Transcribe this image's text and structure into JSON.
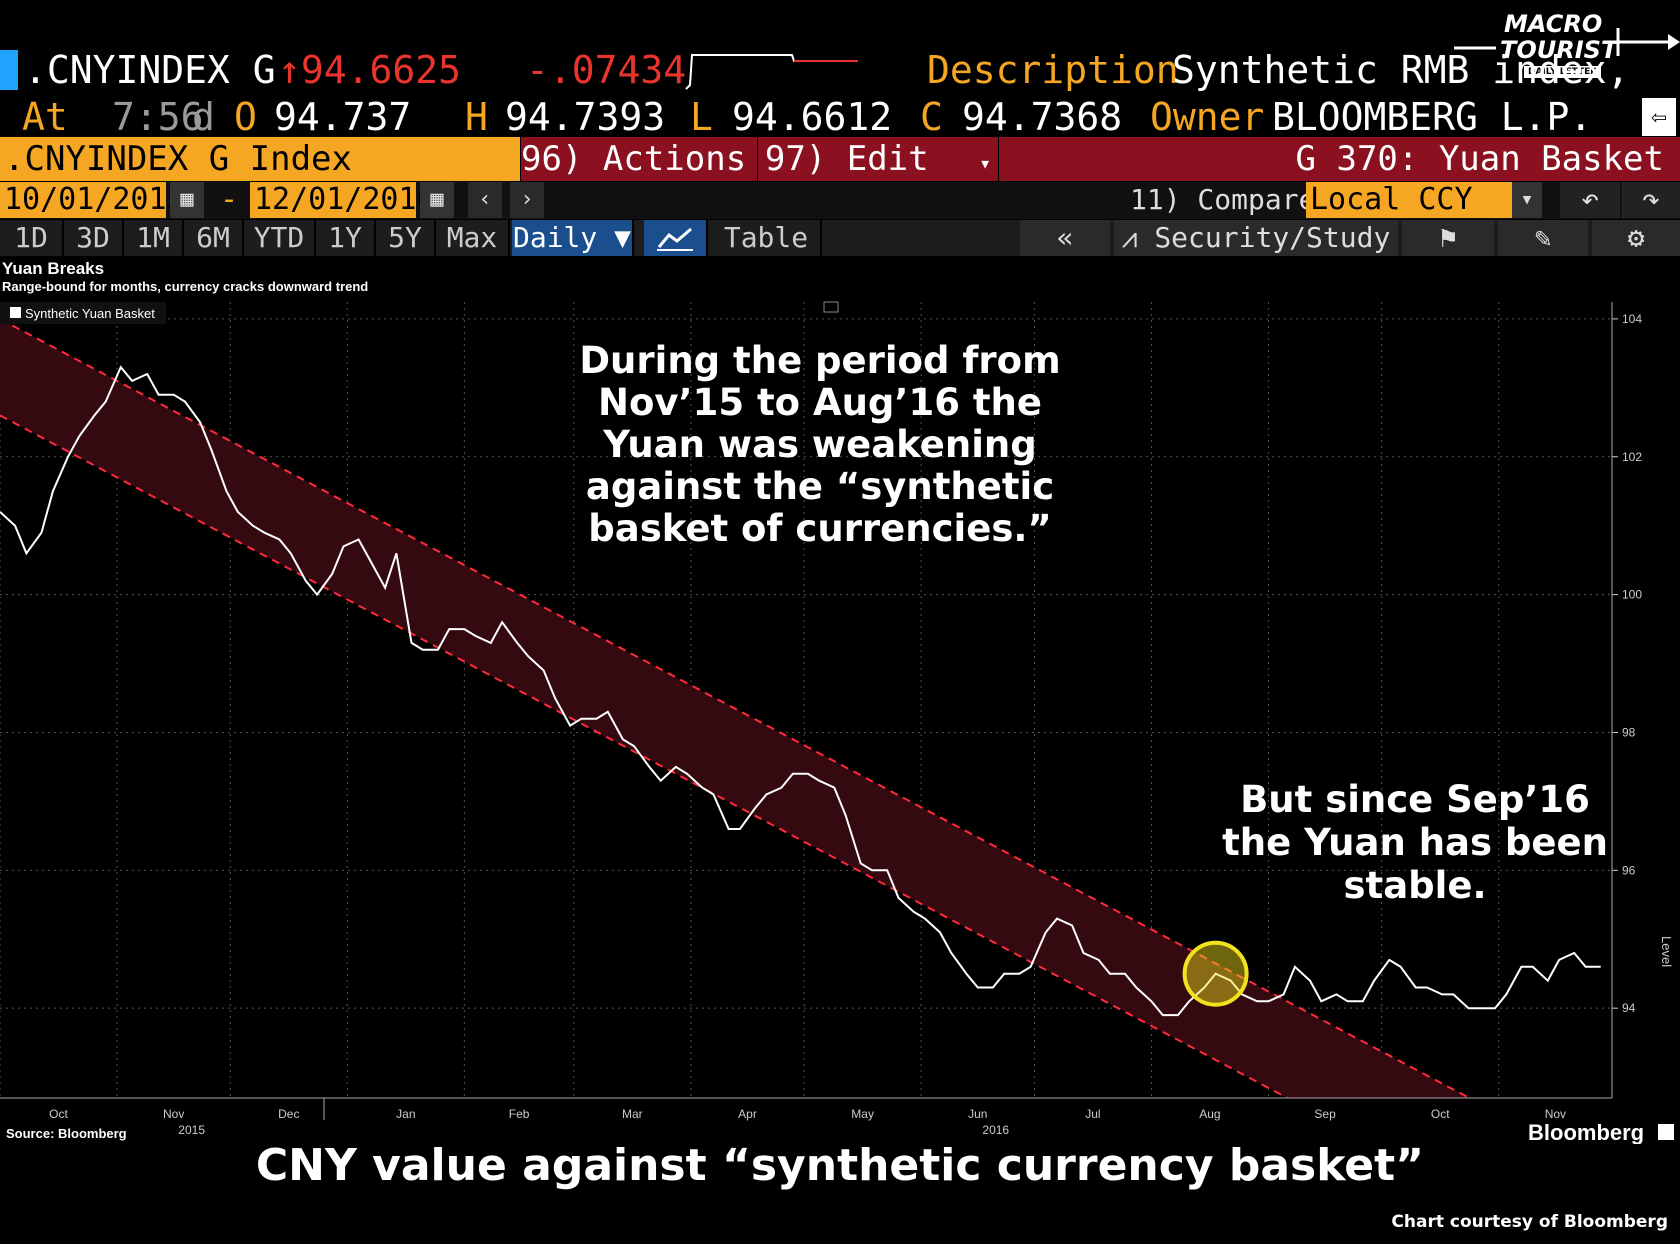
{
  "header": {
    "ticker": ".CNYINDEX G",
    "last_price": "↑94.6625",
    "net_change": "-.07434",
    "description_label": "Description",
    "description_value": "Synthetic RMB index, ge",
    "at_label": "At",
    "time": "7:56",
    "d_label": "d",
    "open_label": "O",
    "open_value": "94.737",
    "high_label": "H",
    "high_value": "94.7393",
    "low_label": "L",
    "low_value": "94.6612",
    "close_label": "C",
    "close_value": "94.7368",
    "owner_label": "Owner",
    "owner_value": "BLOOMBERG L.P."
  },
  "logo": {
    "line1": "MACRO",
    "line2": "TOURIST",
    "line3": "DAILY LETTER"
  },
  "toolbar": {
    "security": ".CNYINDEX G Index",
    "actions": "96) Actions",
    "edit": "97) Edit",
    "chart_code": "G 370: Yuan Basket",
    "start_date": "10/01/2015",
    "date_sep": "-",
    "end_date": "12/01/2016",
    "compare": "11) Compare",
    "currency": "Local CCY",
    "periods": [
      "1D",
      "3D",
      "1M",
      "6M",
      "YTD",
      "1Y",
      "5Y",
      "Max"
    ],
    "frequency": "Daily ▼",
    "table": "Table",
    "security_study": "Security/Study"
  },
  "chart_data": {
    "type": "line",
    "title": "Yuan Breaks",
    "subtitle": "Range-bound for months, currency cracks downward trend",
    "legend": "Synthetic Yuan Basket",
    "legend_position": "top-left",
    "ylabel": "Level",
    "ylim": [
      92.9,
      104.1
    ],
    "y_ticks": [
      "104",
      "102",
      "100",
      "98",
      "96",
      "94"
    ],
    "x_ticks": [
      {
        "label": "Oct",
        "year": ""
      },
      {
        "label": "Nov",
        "year": "2015"
      },
      {
        "label": "Dec",
        "year": ""
      },
      {
        "label": "Jan",
        "year": ""
      },
      {
        "label": "Feb",
        "year": ""
      },
      {
        "label": "Mar",
        "year": ""
      },
      {
        "label": "Apr",
        "year": ""
      },
      {
        "label": "May",
        "year": ""
      },
      {
        "label": "Jun",
        "year": "2016"
      },
      {
        "label": "Jul",
        "year": ""
      },
      {
        "label": "Aug",
        "year": ""
      },
      {
        "label": "Sep",
        "year": ""
      },
      {
        "label": "Oct",
        "year": ""
      },
      {
        "label": "Nov",
        "year": ""
      }
    ],
    "grid": true,
    "series": [
      {
        "name": "Synthetic Yuan Basket",
        "color": "#ffffff",
        "x": [
          "2015-10-01",
          "2015-10-05",
          "2015-10-08",
          "2015-10-12",
          "2015-10-15",
          "2015-10-19",
          "2015-10-22",
          "2015-10-26",
          "2015-10-29",
          "2015-11-02",
          "2015-11-05",
          "2015-11-09",
          "2015-11-12",
          "2015-11-16",
          "2015-11-19",
          "2015-11-23",
          "2015-11-26",
          "2015-11-30",
          "2015-12-03",
          "2015-12-07",
          "2015-12-10",
          "2015-12-14",
          "2015-12-17",
          "2015-12-21",
          "2015-12-24",
          "2015-12-28",
          "2015-12-31",
          "2016-01-04",
          "2016-01-07",
          "2016-01-11",
          "2016-01-14",
          "2016-01-18",
          "2016-01-21",
          "2016-01-25",
          "2016-01-28",
          "2016-02-01",
          "2016-02-04",
          "2016-02-08",
          "2016-02-11",
          "2016-02-15",
          "2016-02-18",
          "2016-02-22",
          "2016-02-25",
          "2016-02-29",
          "2016-03-03",
          "2016-03-07",
          "2016-03-10",
          "2016-03-14",
          "2016-03-17",
          "2016-03-21",
          "2016-03-24",
          "2016-03-28",
          "2016-03-31",
          "2016-04-04",
          "2016-04-07",
          "2016-04-11",
          "2016-04-14",
          "2016-04-18",
          "2016-04-21",
          "2016-04-25",
          "2016-04-28",
          "2016-05-02",
          "2016-05-05",
          "2016-05-09",
          "2016-05-12",
          "2016-05-16",
          "2016-05-19",
          "2016-05-23",
          "2016-05-26",
          "2016-05-30",
          "2016-06-02",
          "2016-06-06",
          "2016-06-09",
          "2016-06-13",
          "2016-06-16",
          "2016-06-20",
          "2016-06-23",
          "2016-06-27",
          "2016-06-30",
          "2016-07-04",
          "2016-07-07",
          "2016-07-11",
          "2016-07-14",
          "2016-07-18",
          "2016-07-21",
          "2016-07-25",
          "2016-07-28",
          "2016-08-01",
          "2016-08-04",
          "2016-08-08",
          "2016-08-11",
          "2016-08-15",
          "2016-08-18",
          "2016-08-22",
          "2016-08-25",
          "2016-08-29",
          "2016-09-01",
          "2016-09-05",
          "2016-09-08",
          "2016-09-12",
          "2016-09-15",
          "2016-09-19",
          "2016-09-22",
          "2016-09-26",
          "2016-09-29",
          "2016-10-03",
          "2016-10-06",
          "2016-10-10",
          "2016-10-13",
          "2016-10-17",
          "2016-10-20",
          "2016-10-24",
          "2016-10-27",
          "2016-10-31",
          "2016-11-03",
          "2016-11-07",
          "2016-11-10",
          "2016-11-14",
          "2016-11-17",
          "2016-11-21",
          "2016-11-24",
          "2016-11-28"
        ],
        "values": [
          101.2,
          101.0,
          100.6,
          100.9,
          101.5,
          102.0,
          102.3,
          102.6,
          102.8,
          103.3,
          103.1,
          103.2,
          102.9,
          102.9,
          102.8,
          102.5,
          102.1,
          101.5,
          101.2,
          101.0,
          100.9,
          100.8,
          100.6,
          100.2,
          100.0,
          100.3,
          100.7,
          100.8,
          100.5,
          100.1,
          100.6,
          99.3,
          99.2,
          99.2,
          99.5,
          99.5,
          99.4,
          99.3,
          99.6,
          99.3,
          99.1,
          98.9,
          98.5,
          98.1,
          98.2,
          98.2,
          98.3,
          97.9,
          97.8,
          97.5,
          97.3,
          97.5,
          97.4,
          97.2,
          97.1,
          96.6,
          96.6,
          96.9,
          97.1,
          97.2,
          97.4,
          97.4,
          97.3,
          97.2,
          96.8,
          96.1,
          96.0,
          96.0,
          95.6,
          95.4,
          95.3,
          95.1,
          94.8,
          94.5,
          94.3,
          94.3,
          94.5,
          94.5,
          94.6,
          95.1,
          95.3,
          95.2,
          94.8,
          94.7,
          94.5,
          94.5,
          94.3,
          94.1,
          93.9,
          93.9,
          94.1,
          94.3,
          94.5,
          94.4,
          94.2,
          94.1,
          94.1,
          94.2,
          94.6,
          94.4,
          94.1,
          94.2,
          94.1,
          94.1,
          94.4,
          94.7,
          94.6,
          94.3,
          94.3,
          94.2,
          94.2,
          94.0,
          94.0,
          94.0,
          94.2,
          94.6,
          94.6,
          94.4,
          94.7,
          94.8,
          94.6,
          94.6
        ]
      }
    ],
    "channel": {
      "upper": [
        {
          "x": "2015-10-01",
          "y": 104.0
        },
        {
          "x": "2016-12-01",
          "y": 91.6
        }
      ],
      "lower": [
        {
          "x": "2015-10-01",
          "y": 102.6
        },
        {
          "x": "2016-12-01",
          "y": 90.2
        }
      ]
    },
    "highlight": {
      "x": "2016-08-18",
      "y": 94.5
    },
    "source": "Source: Bloomberg",
    "brand": "Bloomberg"
  },
  "annotations": {
    "main": [
      "During the period from",
      "Nov’15 to Aug’16 the",
      "Yuan was weakening",
      "against the “synthetic",
      "basket of currencies.”"
    ],
    "side": [
      "But since Sep’16",
      "the Yuan has been",
      "stable."
    ],
    "caption": "CNY value against “synthetic currency basket”",
    "credit": "Chart courtesy of Bloomberg"
  },
  "colors": {
    "amber": "#f5a623",
    "red_bar": "#8b1020",
    "channel_fill": "#3a0a12",
    "channel_line": "#ff2a3a",
    "highlight": "#f2e21d"
  }
}
